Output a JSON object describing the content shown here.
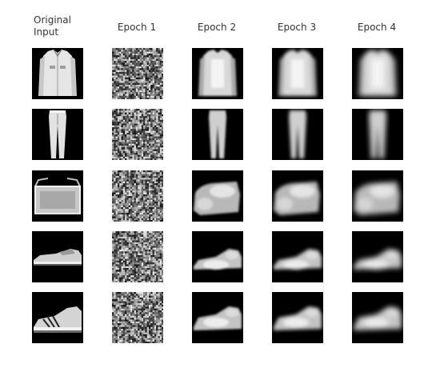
{
  "figure": {
    "columns": [
      {
        "title": "Original\nInput"
      },
      {
        "title": "Epoch 1"
      },
      {
        "title": "Epoch 2"
      },
      {
        "title": "Epoch 3"
      },
      {
        "title": "Epoch 4"
      }
    ],
    "rows": [
      {
        "item": "shirt-icon"
      },
      {
        "item": "trousers-icon"
      },
      {
        "item": "bag-icon"
      },
      {
        "item": "sneaker-icon"
      },
      {
        "item": "sneaker-icon"
      }
    ]
  }
}
